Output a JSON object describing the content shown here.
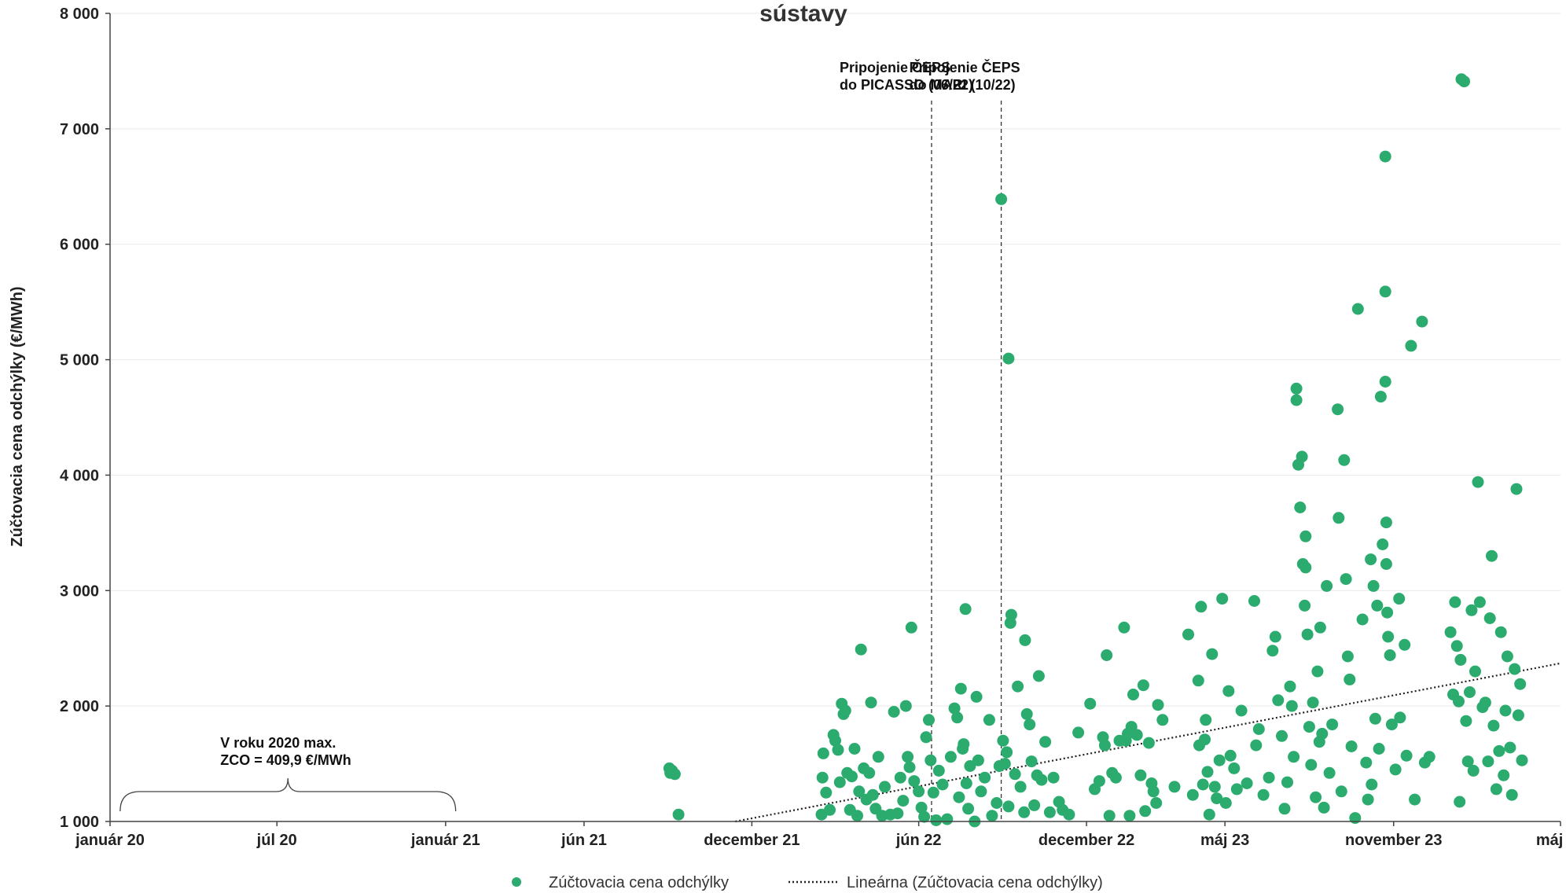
{
  "chart_data": {
    "type": "scatter",
    "title": "sústavy",
    "xlabel": "",
    "ylabel": "Zúčtovacia cena odchýlky (€/MWh)",
    "xlim": [
      "2020-01",
      "2024-05"
    ],
    "ylim": [
      1000,
      8000
    ],
    "y_ticks": [
      1000,
      2000,
      3000,
      4000,
      5000,
      6000,
      7000,
      8000
    ],
    "y_tick_labels": [
      "1 000",
      "2 000",
      "3 000",
      "4 000",
      "5 000",
      "6 000",
      "7 000",
      "8 000"
    ],
    "x_ticks": [
      "2020-01",
      "2020-07",
      "2021-01",
      "2021-06",
      "2021-12",
      "2022-06",
      "2022-12",
      "2023-05",
      "2023-11",
      "2024-05"
    ],
    "x_tick_labels": [
      "január 20",
      "júl 20",
      "január 21",
      "jún 21",
      "december 21",
      "jún 22",
      "december 22",
      "máj 23",
      "november 23",
      "máj 24"
    ],
    "grid": true,
    "legend_position": "bottom",
    "colors": {
      "points": "#2bab6e",
      "trend": "#222222",
      "grid": "#e9e9e9",
      "axis": "#444444"
    },
    "series": [
      {
        "name": "Zúčtovacia cena odchýlky",
        "kind": "scatter",
        "points": [
          [
            "2021-09-02",
            1460
          ],
          [
            "2021-09-03",
            1420
          ],
          [
            "2021-09-05",
            1440
          ],
          [
            "2021-09-08",
            1410
          ],
          [
            "2021-09-12",
            1060
          ],
          [
            "2022-02-15",
            1060
          ],
          [
            "2022-02-16",
            1380
          ],
          [
            "2022-02-17",
            1590
          ],
          [
            "2022-02-20",
            1250
          ],
          [
            "2022-02-24",
            1100
          ],
          [
            "2022-02-28",
            1750
          ],
          [
            "2022-03-02",
            1700
          ],
          [
            "2022-03-05",
            1620
          ],
          [
            "2022-03-07",
            1340
          ],
          [
            "2022-03-09",
            2020
          ],
          [
            "2022-03-11",
            1930
          ],
          [
            "2022-03-13",
            1960
          ],
          [
            "2022-03-15",
            1420
          ],
          [
            "2022-03-18",
            1100
          ],
          [
            "2022-03-20",
            1390
          ],
          [
            "2022-03-23",
            1630
          ],
          [
            "2022-03-26",
            1050
          ],
          [
            "2022-03-28",
            1260
          ],
          [
            "2022-03-30",
            2490
          ],
          [
            "2022-04-02",
            1460
          ],
          [
            "2022-04-05",
            1190
          ],
          [
            "2022-04-08",
            1420
          ],
          [
            "2022-04-10",
            2030
          ],
          [
            "2022-04-12",
            1230
          ],
          [
            "2022-04-15",
            1110
          ],
          [
            "2022-04-18",
            1560
          ],
          [
            "2022-04-22",
            1050
          ],
          [
            "2022-04-25",
            1300
          ],
          [
            "2022-05-01",
            1060
          ],
          [
            "2022-05-05",
            1950
          ],
          [
            "2022-05-09",
            1070
          ],
          [
            "2022-05-12",
            1380
          ],
          [
            "2022-05-15",
            1180
          ],
          [
            "2022-05-18",
            2000
          ],
          [
            "2022-05-20",
            1560
          ],
          [
            "2022-05-22",
            1470
          ],
          [
            "2022-05-24",
            2680
          ],
          [
            "2022-05-27",
            1350
          ],
          [
            "2022-06-01",
            1260
          ],
          [
            "2022-06-04",
            1120
          ],
          [
            "2022-06-07",
            1040
          ],
          [
            "2022-06-09",
            1730
          ],
          [
            "2022-06-12",
            1880
          ],
          [
            "2022-06-14",
            1530
          ],
          [
            "2022-06-17",
            1250
          ],
          [
            "2022-06-20",
            1010
          ],
          [
            "2022-06-23",
            1440
          ],
          [
            "2022-06-27",
            1320
          ],
          [
            "2022-07-02",
            1020
          ],
          [
            "2022-07-06",
            1560
          ],
          [
            "2022-07-10",
            1980
          ],
          [
            "2022-07-13",
            1900
          ],
          [
            "2022-07-15",
            1210
          ],
          [
            "2022-07-17",
            2150
          ],
          [
            "2022-07-19",
            1630
          ],
          [
            "2022-07-20",
            1670
          ],
          [
            "2022-07-22",
            2840
          ],
          [
            "2022-07-23",
            1330
          ],
          [
            "2022-07-25",
            1110
          ],
          [
            "2022-07-27",
            1480
          ],
          [
            "2022-08-01",
            1000
          ],
          [
            "2022-08-03",
            2080
          ],
          [
            "2022-08-05",
            1530
          ],
          [
            "2022-08-08",
            1260
          ],
          [
            "2022-08-12",
            1380
          ],
          [
            "2022-08-17",
            1880
          ],
          [
            "2022-08-20",
            1050
          ],
          [
            "2022-08-25",
            1160
          ],
          [
            "2022-08-28",
            1480
          ],
          [
            "2022-09-01",
            1700
          ],
          [
            "2022-09-03",
            1500
          ],
          [
            "2022-09-05",
            1600
          ],
          [
            "2022-09-07",
            1130
          ],
          [
            "2022-09-09",
            2720
          ],
          [
            "2022-09-10",
            2790
          ],
          [
            "2022-09-14",
            1410
          ],
          [
            "2022-09-17",
            2170
          ],
          [
            "2022-09-20",
            1300
          ],
          [
            "2022-09-24",
            1080
          ],
          [
            "2022-09-27",
            1930
          ],
          [
            "2022-09-30",
            1840
          ],
          [
            "2022-10-02",
            1520
          ],
          [
            "2022-10-05",
            1140
          ],
          [
            "2022-10-08",
            1400
          ],
          [
            "2022-10-10",
            2260
          ],
          [
            "2022-10-13",
            1360
          ],
          [
            "2022-10-17",
            1690
          ],
          [
            "2022-10-22",
            1080
          ],
          [
            "2022-10-26",
            1380
          ],
          [
            "2022-11-01",
            1170
          ],
          [
            "2022-11-05",
            1100
          ],
          [
            "2022-11-12",
            1060
          ],
          [
            "2022-08-30",
            6390
          ],
          [
            "2022-09-07",
            5010
          ],
          [
            "2022-09-25",
            2570
          ],
          [
            "2022-11-22",
            1770
          ],
          [
            "2022-12-05",
            2020
          ],
          [
            "2022-12-10",
            1280
          ],
          [
            "2022-12-15",
            1350
          ],
          [
            "2022-12-19",
            1730
          ],
          [
            "2022-12-21",
            1660
          ],
          [
            "2022-12-23",
            2440
          ],
          [
            "2022-12-26",
            1050
          ],
          [
            "2022-12-29",
            1420
          ],
          [
            "2023-01-02",
            1380
          ],
          [
            "2023-01-06",
            1700
          ],
          [
            "2023-01-11",
            2680
          ],
          [
            "2023-01-13",
            1700
          ],
          [
            "2023-01-15",
            1760
          ],
          [
            "2023-01-17",
            1050
          ],
          [
            "2023-01-19",
            1820
          ],
          [
            "2023-01-21",
            2100
          ],
          [
            "2023-01-25",
            1750
          ],
          [
            "2023-01-29",
            1400
          ],
          [
            "2023-02-01",
            2180
          ],
          [
            "2023-02-03",
            1090
          ],
          [
            "2023-02-07",
            1680
          ],
          [
            "2023-02-10",
            1330
          ],
          [
            "2023-02-12",
            1260
          ],
          [
            "2023-02-15",
            1160
          ],
          [
            "2023-02-17",
            2010
          ],
          [
            "2023-02-22",
            1880
          ],
          [
            "2023-03-07",
            1300
          ],
          [
            "2023-03-22",
            2620
          ],
          [
            "2023-03-27",
            1230
          ],
          [
            "2023-04-02",
            2220
          ],
          [
            "2023-04-03",
            1660
          ],
          [
            "2023-04-05",
            2860
          ],
          [
            "2023-04-07",
            1320
          ],
          [
            "2023-04-09",
            1710
          ],
          [
            "2023-04-10",
            1880
          ],
          [
            "2023-04-12",
            1430
          ],
          [
            "2023-04-14",
            1060
          ],
          [
            "2023-04-17",
            2450
          ],
          [
            "2023-04-20",
            1300
          ],
          [
            "2023-04-22",
            1200
          ],
          [
            "2023-04-25",
            1530
          ],
          [
            "2023-04-28",
            2930
          ],
          [
            "2023-05-02",
            1160
          ],
          [
            "2023-05-05",
            2130
          ],
          [
            "2023-05-07",
            1570
          ],
          [
            "2023-05-11",
            1460
          ],
          [
            "2023-05-14",
            1280
          ],
          [
            "2023-05-19",
            1960
          ],
          [
            "2023-05-25",
            1330
          ],
          [
            "2023-06-02",
            2910
          ],
          [
            "2023-06-04",
            1660
          ],
          [
            "2023-06-07",
            1800
          ],
          [
            "2023-06-12",
            1230
          ],
          [
            "2023-06-18",
            1380
          ],
          [
            "2023-06-22",
            2480
          ],
          [
            "2023-06-25",
            2600
          ],
          [
            "2023-06-28",
            2050
          ],
          [
            "2023-07-02",
            1740
          ],
          [
            "2023-07-05",
            1110
          ],
          [
            "2023-07-08",
            1340
          ],
          [
            "2023-07-11",
            2170
          ],
          [
            "2023-07-13",
            2000
          ],
          [
            "2023-07-15",
            1560
          ],
          [
            "2023-07-18",
            4750
          ],
          [
            "2023-07-18",
            4650
          ],
          [
            "2023-07-20",
            4090
          ],
          [
            "2023-07-22",
            3720
          ],
          [
            "2023-07-24",
            4160
          ],
          [
            "2023-07-25",
            3230
          ],
          [
            "2023-07-27",
            2870
          ],
          [
            "2023-07-28",
            3470
          ],
          [
            "2023-07-28",
            3200
          ],
          [
            "2023-07-30",
            2620
          ],
          [
            "2023-08-01",
            1820
          ],
          [
            "2023-08-03",
            1490
          ],
          [
            "2023-08-05",
            2030
          ],
          [
            "2023-08-08",
            1210
          ],
          [
            "2023-08-10",
            2300
          ],
          [
            "2023-08-12",
            1690
          ],
          [
            "2023-08-13",
            2680
          ],
          [
            "2023-08-15",
            1760
          ],
          [
            "2023-08-17",
            1120
          ],
          [
            "2023-08-20",
            3040
          ],
          [
            "2023-08-23",
            1420
          ],
          [
            "2023-08-26",
            1840
          ],
          [
            "2023-09-01",
            4570
          ],
          [
            "2023-09-02",
            3630
          ],
          [
            "2023-09-05",
            1260
          ],
          [
            "2023-09-08",
            4130
          ],
          [
            "2023-09-10",
            3100
          ],
          [
            "2023-09-12",
            2430
          ],
          [
            "2023-09-14",
            2230
          ],
          [
            "2023-09-16",
            1650
          ],
          [
            "2023-09-20",
            1030
          ],
          [
            "2023-09-23",
            5440
          ],
          [
            "2023-09-28",
            2750
          ],
          [
            "2023-10-02",
            1510
          ],
          [
            "2023-10-04",
            1190
          ],
          [
            "2023-10-07",
            3270
          ],
          [
            "2023-10-08",
            1320
          ],
          [
            "2023-10-10",
            3040
          ],
          [
            "2023-10-12",
            1890
          ],
          [
            "2023-10-14",
            2870
          ],
          [
            "2023-10-16",
            1630
          ],
          [
            "2023-10-18",
            4680
          ],
          [
            "2023-10-20",
            3400
          ],
          [
            "2023-10-23",
            6760
          ],
          [
            "2023-10-23",
            5590
          ],
          [
            "2023-10-23",
            4810
          ],
          [
            "2023-10-24",
            3590
          ],
          [
            "2023-10-24",
            3230
          ],
          [
            "2023-10-25",
            2810
          ],
          [
            "2023-10-26",
            2600
          ],
          [
            "2023-10-28",
            2440
          ],
          [
            "2023-10-30",
            1840
          ],
          [
            "2023-11-03",
            1450
          ],
          [
            "2023-11-07",
            2930
          ],
          [
            "2023-11-08",
            1900
          ],
          [
            "2023-11-13",
            2530
          ],
          [
            "2023-11-15",
            1570
          ],
          [
            "2023-11-20",
            5120
          ],
          [
            "2023-11-24",
            1190
          ],
          [
            "2023-12-02",
            5330
          ],
          [
            "2023-12-05",
            1510
          ],
          [
            "2023-12-10",
            1560
          ],
          [
            "2024-01-02",
            2640
          ],
          [
            "2024-01-05",
            2100
          ],
          [
            "2024-01-07",
            2900
          ],
          [
            "2024-01-09",
            2520
          ],
          [
            "2024-01-11",
            2040
          ],
          [
            "2024-01-12",
            1170
          ],
          [
            "2024-01-13",
            2400
          ],
          [
            "2024-01-14",
            7430
          ],
          [
            "2024-01-17",
            7410
          ],
          [
            "2024-01-19",
            1870
          ],
          [
            "2024-01-21",
            1520
          ],
          [
            "2024-01-23",
            2120
          ],
          [
            "2024-01-25",
            2830
          ],
          [
            "2024-01-27",
            1440
          ],
          [
            "2024-01-29",
            2300
          ],
          [
            "2024-02-01",
            3940
          ],
          [
            "2024-02-03",
            2900
          ],
          [
            "2024-02-06",
            1990
          ],
          [
            "2024-02-09",
            2030
          ],
          [
            "2024-02-12",
            1520
          ],
          [
            "2024-02-14",
            2760
          ],
          [
            "2024-02-16",
            3300
          ],
          [
            "2024-02-18",
            1830
          ],
          [
            "2024-02-21",
            1280
          ],
          [
            "2024-02-24",
            1610
          ],
          [
            "2024-02-26",
            2640
          ],
          [
            "2024-02-29",
            1400
          ],
          [
            "2024-03-02",
            1960
          ],
          [
            "2024-03-04",
            2430
          ],
          [
            "2024-03-07",
            1640
          ],
          [
            "2024-03-09",
            1230
          ],
          [
            "2024-03-12",
            2320
          ],
          [
            "2024-03-14",
            3880
          ],
          [
            "2024-03-16",
            1920
          ],
          [
            "2024-03-18",
            2190
          ],
          [
            "2024-03-20",
            1530
          ]
        ]
      },
      {
        "name": "Lineárna (Zúčtovacia cena odchýlky)",
        "kind": "trendline",
        "points": [
          [
            "2021-11-13",
            1000
          ],
          [
            "2024-05-01",
            2370
          ]
        ]
      }
    ],
    "reference_lines": [
      {
        "x": "2022-06-15",
        "label_lines": [
          "Pripojenie ČEPS",
          "do PICASSO (06/22)"
        ]
      },
      {
        "x": "2022-08-30",
        "label_lines": [
          "Pripojenie ČEPS",
          "do MARI (10/22)"
        ]
      }
    ],
    "annotations": [
      {
        "label_lines": [
          "V roku 2020 max.",
          "ZCO = 409,9 €/MWh"
        ],
        "brace_from": "2020-01-12",
        "brace_to": "2021-01-12"
      }
    ]
  }
}
